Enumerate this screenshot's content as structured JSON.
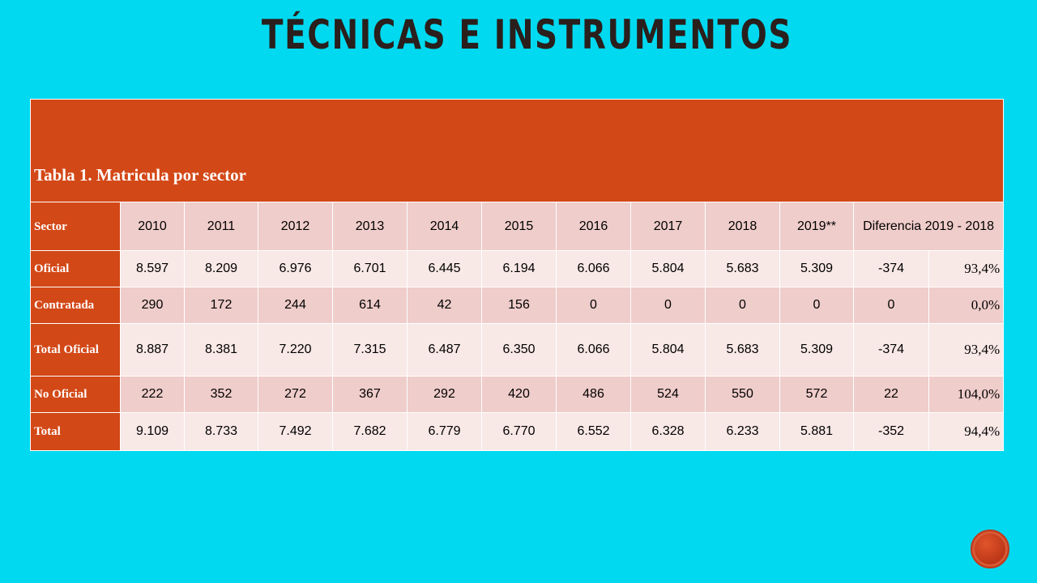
{
  "title": "TÉCNICAS E INSTRUMENTOS",
  "table": {
    "caption": "Tabla  1. Matricula por sector",
    "header": [
      "Sector",
      "2010",
      "2011",
      "2012",
      "2013",
      "2014",
      "2015",
      "2016",
      "2017",
      "2018",
      "2019**",
      "Diferencia 2019 - 2018"
    ],
    "rows": [
      [
        "Oficial",
        "8.597",
        "8.209",
        "6.976",
        "6.701",
        "6.445",
        "6.194",
        "6.066",
        "5.804",
        "5.683",
        "5.309",
        "-374",
        "93,4%"
      ],
      [
        "Contratada",
        "290",
        "172",
        "244",
        "614",
        "42",
        "156",
        "0",
        "0",
        "0",
        "0",
        "0",
        "0,0%"
      ],
      [
        "Total Oficial",
        "8.887",
        "8.381",
        "7.220",
        "7.315",
        "6.487",
        "6.350",
        "6.066",
        "5.804",
        "5.683",
        "5.309",
        "-374",
        "93,4%"
      ],
      [
        "No Oficial",
        "222",
        "352",
        "272",
        "367",
        "292",
        "420",
        "486",
        "524",
        "550",
        "572",
        "22",
        "104,0%"
      ],
      [
        "Total",
        "9.109",
        "8.733",
        "7.492",
        "7.682",
        "6.779",
        "6.770",
        "6.552",
        "6.328",
        "6.233",
        "5.881",
        "-352",
        "94,4%"
      ]
    ]
  }
}
